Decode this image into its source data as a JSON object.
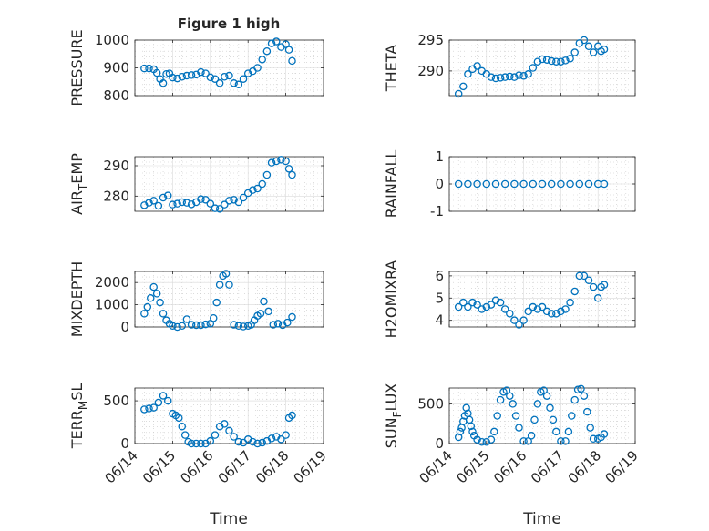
{
  "chart_data": {
    "type": "scatter",
    "title": "Figure 1 high",
    "xlabel": "Time",
    "x_ticks": [
      "06/14",
      "06/15",
      "06/16",
      "06/17",
      "06/18",
      "06/19"
    ],
    "x_range": [
      "06/14",
      "06/19"
    ],
    "grid": true,
    "marker": "open-circle",
    "series_color": "#0072BD",
    "panels": [
      {
        "ylabel": "PRESSURE",
        "ylim": [
          800,
          1000
        ],
        "yticks": [
          800,
          900,
          1000
        ],
        "x": [
          "06/14 06:00",
          "06/14 09:00",
          "06/14 12:00",
          "06/14 14:00",
          "06/14 16:00",
          "06/14 18:00",
          "06/14 20:00",
          "06/14 22:00",
          "06/15 00:00",
          "06/15 03:00",
          "06/15 06:00",
          "06/15 09:00",
          "06/15 12:00",
          "06/15 15:00",
          "06/15 18:00",
          "06/15 21:00",
          "06/16 00:00",
          "06/16 03:00",
          "06/16 06:00",
          "06/16 09:00",
          "06/16 12:00",
          "06/16 15:00",
          "06/16 18:00",
          "06/16 21:00",
          "06/17 00:00",
          "06/17 03:00",
          "06/17 06:00",
          "06/17 09:00",
          "06/17 12:00",
          "06/17 15:00",
          "06/17 18:00",
          "06/17 21:00",
          "06/18 00:00",
          "06/18 02:00",
          "06/18 04:00"
        ],
        "y": [
          898,
          898,
          895,
          882,
          860,
          845,
          878,
          880,
          865,
          862,
          868,
          872,
          874,
          876,
          885,
          880,
          866,
          860,
          845,
          868,
          872,
          845,
          840,
          860,
          880,
          888,
          900,
          930,
          960,
          988,
          995,
          975,
          985,
          965,
          925
        ]
      },
      {
        "ylabel": "THETA",
        "ylim": [
          286,
          295
        ],
        "yticks": [
          290,
          295
        ],
        "x": [
          "06/14 06:00",
          "06/14 09:00",
          "06/14 12:00",
          "06/14 15:00",
          "06/14 18:00",
          "06/14 21:00",
          "06/15 00:00",
          "06/15 03:00",
          "06/15 06:00",
          "06/15 09:00",
          "06/15 12:00",
          "06/15 15:00",
          "06/15 18:00",
          "06/15 21:00",
          "06/16 00:00",
          "06/16 03:00",
          "06/16 06:00",
          "06/16 09:00",
          "06/16 12:00",
          "06/16 15:00",
          "06/16 18:00",
          "06/16 21:00",
          "06/17 00:00",
          "06/17 03:00",
          "06/17 06:00",
          "06/17 09:00",
          "06/17 12:00",
          "06/17 15:00",
          "06/17 18:00",
          "06/17 21:00",
          "06/18 00:00",
          "06/18 02:00",
          "06/18 04:00"
        ],
        "y": [
          286.3,
          287.5,
          289.5,
          290.3,
          290.8,
          290.0,
          289.5,
          289.0,
          288.8,
          288.9,
          289.0,
          289.1,
          289.0,
          289.3,
          289.2,
          289.5,
          290.5,
          291.5,
          291.9,
          291.8,
          291.6,
          291.5,
          291.5,
          291.7,
          292.0,
          293.0,
          294.5,
          295.0,
          294.0,
          293.0,
          294.0,
          293.2,
          293.5
        ]
      },
      {
        "ylabel": "AIR_TEMP",
        "ylim": [
          275,
          293
        ],
        "yticks": [
          280,
          290
        ],
        "x": [
          "06/14 06:00",
          "06/14 09:00",
          "06/14 12:00",
          "06/14 15:00",
          "06/14 18:00",
          "06/14 21:00",
          "06/15 00:00",
          "06/15 03:00",
          "06/15 06:00",
          "06/15 09:00",
          "06/15 12:00",
          "06/15 15:00",
          "06/15 18:00",
          "06/15 21:00",
          "06/16 00:00",
          "06/16 03:00",
          "06/16 06:00",
          "06/16 09:00",
          "06/16 12:00",
          "06/16 15:00",
          "06/16 18:00",
          "06/16 21:00",
          "06/17 00:00",
          "06/17 03:00",
          "06/17 06:00",
          "06/17 09:00",
          "06/17 12:00",
          "06/17 15:00",
          "06/17 18:00",
          "06/17 21:00",
          "06/18 00:00",
          "06/18 02:00",
          "06/18 04:00"
        ],
        "y": [
          277.0,
          277.8,
          278.5,
          276.8,
          279.5,
          280.2,
          277.2,
          277.5,
          278.0,
          277.8,
          277.3,
          278.0,
          279.0,
          278.8,
          277.5,
          276.0,
          275.8,
          277.2,
          278.5,
          278.8,
          278.0,
          279.5,
          281.0,
          282.0,
          282.5,
          284.0,
          287.0,
          291.0,
          291.5,
          292.0,
          291.5,
          289.0,
          287.0
        ]
      },
      {
        "ylabel": "RAINFALL",
        "ylim": [
          -1,
          1
        ],
        "yticks": [
          -1,
          0,
          1
        ],
        "x": [
          "06/14 06:00",
          "06/14 12:00",
          "06/14 18:00",
          "06/15 00:00",
          "06/15 06:00",
          "06/15 12:00",
          "06/15 18:00",
          "06/16 00:00",
          "06/16 06:00",
          "06/16 12:00",
          "06/16 18:00",
          "06/17 00:00",
          "06/17 06:00",
          "06/17 12:00",
          "06/17 18:00",
          "06/18 00:00",
          "06/18 04:00"
        ],
        "y": [
          0,
          0,
          0,
          0,
          0,
          0,
          0,
          0,
          0,
          0,
          0,
          0,
          0,
          0,
          0,
          0,
          0
        ]
      },
      {
        "ylabel": "MIXDEPTH",
        "ylim": [
          0,
          2500
        ],
        "yticks": [
          0,
          1000,
          2000
        ],
        "x": [
          "06/14 06:00",
          "06/14 08:00",
          "06/14 10:00",
          "06/14 12:00",
          "06/14 14:00",
          "06/14 16:00",
          "06/14 18:00",
          "06/14 20:00",
          "06/14 22:00",
          "06/15 00:00",
          "06/15 03:00",
          "06/15 06:00",
          "06/15 09:00",
          "06/15 12:00",
          "06/15 15:00",
          "06/15 18:00",
          "06/15 21:00",
          "06/16 00:00",
          "06/16 02:00",
          "06/16 04:00",
          "06/16 06:00",
          "06/16 08:00",
          "06/16 10:00",
          "06/16 12:00",
          "06/16 15:00",
          "06/16 18:00",
          "06/16 21:00",
          "06/17 00:00",
          "06/17 02:00",
          "06/17 04:00",
          "06/17 06:00",
          "06/17 08:00",
          "06/17 10:00",
          "06/17 13:00",
          "06/17 16:00",
          "06/17 19:00",
          "06/17 22:00",
          "06/18 01:00",
          "06/18 04:00"
        ],
        "y": [
          600,
          900,
          1300,
          1800,
          1500,
          1100,
          600,
          300,
          150,
          50,
          0,
          50,
          350,
          100,
          80,
          80,
          120,
          150,
          400,
          1100,
          1900,
          2300,
          2400,
          1900,
          100,
          50,
          20,
          50,
          100,
          300,
          500,
          600,
          1150,
          700,
          100,
          150,
          80,
          200,
          450
        ]
      },
      {
        "ylabel": "H2OMIXRA",
        "ylim": [
          3.7,
          6.2
        ],
        "yticks": [
          4,
          5,
          6
        ],
        "x": [
          "06/14 06:00",
          "06/14 09:00",
          "06/14 12:00",
          "06/14 15:00",
          "06/14 18:00",
          "06/14 21:00",
          "06/15 00:00",
          "06/15 03:00",
          "06/15 06:00",
          "06/15 09:00",
          "06/15 12:00",
          "06/15 15:00",
          "06/15 18:00",
          "06/15 21:00",
          "06/16 00:00",
          "06/16 03:00",
          "06/16 06:00",
          "06/16 09:00",
          "06/16 12:00",
          "06/16 15:00",
          "06/16 18:00",
          "06/16 21:00",
          "06/17 00:00",
          "06/17 03:00",
          "06/17 06:00",
          "06/17 09:00",
          "06/17 12:00",
          "06/17 15:00",
          "06/17 18:00",
          "06/17 21:00",
          "06/18 00:00",
          "06/18 02:00",
          "06/18 04:00"
        ],
        "y": [
          4.6,
          4.8,
          4.6,
          4.8,
          4.7,
          4.5,
          4.6,
          4.7,
          4.9,
          4.8,
          4.5,
          4.3,
          4.0,
          3.8,
          4.0,
          4.4,
          4.6,
          4.5,
          4.6,
          4.4,
          4.3,
          4.3,
          4.4,
          4.5,
          4.8,
          5.3,
          6.0,
          6.0,
          5.8,
          5.5,
          5.0,
          5.5,
          5.6
        ]
      },
      {
        "ylabel": "TERR_MSL",
        "ylim": [
          0,
          650
        ],
        "yticks": [
          0,
          500
        ],
        "x": [
          "06/14 06:00",
          "06/14 09:00",
          "06/14 12:00",
          "06/14 15:00",
          "06/14 18:00",
          "06/14 21:00",
          "06/15 00:00",
          "06/15 02:00",
          "06/15 04:00",
          "06/15 06:00",
          "06/15 08:00",
          "06/15 10:00",
          "06/15 12:00",
          "06/15 15:00",
          "06/15 18:00",
          "06/15 21:00",
          "06/16 00:00",
          "06/16 03:00",
          "06/16 06:00",
          "06/16 09:00",
          "06/16 12:00",
          "06/16 15:00",
          "06/16 18:00",
          "06/16 21:00",
          "06/17 00:00",
          "06/17 03:00",
          "06/17 06:00",
          "06/17 09:00",
          "06/17 12:00",
          "06/17 15:00",
          "06/17 18:00",
          "06/17 21:00",
          "06/18 00:00",
          "06/18 02:00",
          "06/18 04:00"
        ],
        "y": [
          400,
          410,
          420,
          480,
          560,
          500,
          350,
          330,
          300,
          200,
          100,
          20,
          0,
          0,
          0,
          0,
          30,
          100,
          200,
          230,
          150,
          80,
          20,
          10,
          50,
          20,
          0,
          10,
          30,
          60,
          80,
          50,
          100,
          300,
          330
        ]
      },
      {
        "ylabel": "SUN_FLUX",
        "ylim": [
          0,
          700
        ],
        "yticks": [
          0,
          500
        ],
        "x": [
          "06/14 06:00",
          "06/14 07:00",
          "06/14 08:00",
          "06/14 09:00",
          "06/14 10:00",
          "06/14 11:00",
          "06/14 12:00",
          "06/14 13:00",
          "06/14 14:00",
          "06/14 15:00",
          "06/14 16:00",
          "06/14 18:00",
          "06/14 21:00",
          "06/15 00:00",
          "06/15 03:00",
          "06/15 05:00",
          "06/15 07:00",
          "06/15 09:00",
          "06/15 11:00",
          "06/15 13:00",
          "06/15 15:00",
          "06/15 17:00",
          "06/15 19:00",
          "06/15 21:00",
          "06/16 00:00",
          "06/16 03:00",
          "06/16 05:00",
          "06/16 07:00",
          "06/16 09:00",
          "06/16 11:00",
          "06/16 13:00",
          "06/16 15:00",
          "06/16 17:00",
          "06/16 19:00",
          "06/16 21:00",
          "06/17 00:00",
          "06/17 03:00",
          "06/17 05:00",
          "06/17 07:00",
          "06/17 09:00",
          "06/17 11:00",
          "06/17 13:00",
          "06/17 15:00",
          "06/17 17:00",
          "06/17 19:00",
          "06/17 21:00",
          "06/18 00:00",
          "06/18 02:00",
          "06/18 04:00"
        ],
        "y": [
          80,
          150,
          200,
          280,
          350,
          450,
          380,
          300,
          220,
          150,
          100,
          50,
          20,
          20,
          50,
          150,
          350,
          550,
          650,
          670,
          600,
          500,
          350,
          200,
          30,
          30,
          100,
          300,
          500,
          650,
          670,
          600,
          450,
          300,
          150,
          30,
          30,
          150,
          350,
          550,
          680,
          690,
          600,
          400,
          200,
          60,
          60,
          80,
          120
        ]
      }
    ]
  }
}
